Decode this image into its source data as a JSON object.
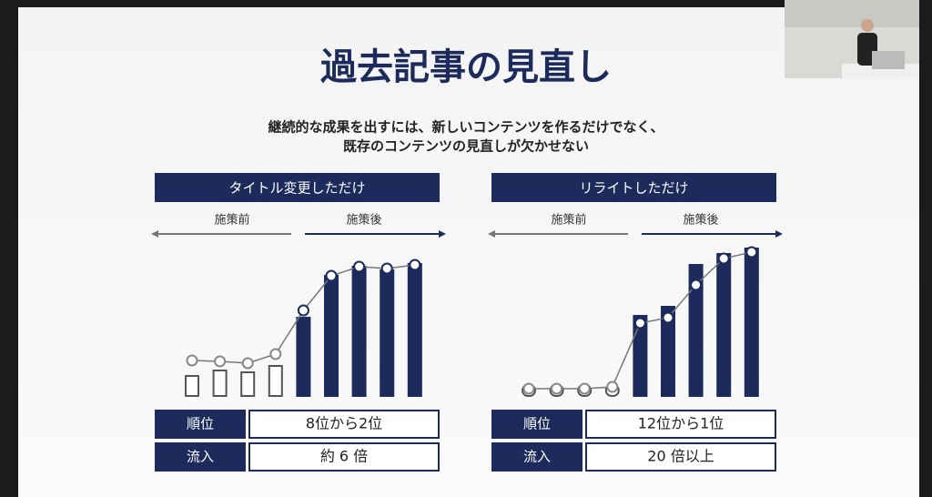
{
  "title": "過去記事の見直し",
  "subtitle": [
    "継続的な成果を出すには、新しいコンテンツを作るだけでなく、",
    "既存のコンテンツの見直しが欠かせない"
  ],
  "panels": [
    {
      "header": "タイトル変更しただけ",
      "before": "施策前",
      "after": "施策後",
      "bars": [
        22,
        28,
        26,
        33,
        86,
        132,
        142,
        138,
        145
      ],
      "line": [
        39,
        38,
        36,
        46,
        94,
        132,
        142,
        140,
        144
      ],
      "rows": [
        [
          "順位",
          "8位から2位"
        ],
        [
          "流入",
          "約 6 倍"
        ]
      ]
    },
    {
      "header": "リライトしただけ",
      "before": "施策前",
      "after": "施策後",
      "bars": [
        12,
        12,
        12,
        12,
        88,
        98,
        144,
        156,
        162
      ],
      "line": [
        8,
        8,
        8,
        10,
        80,
        86,
        122,
        151,
        158
      ],
      "rows": [
        [
          "順位",
          "12位から1位"
        ],
        [
          "流入",
          "20 倍以上"
        ]
      ]
    }
  ]
}
